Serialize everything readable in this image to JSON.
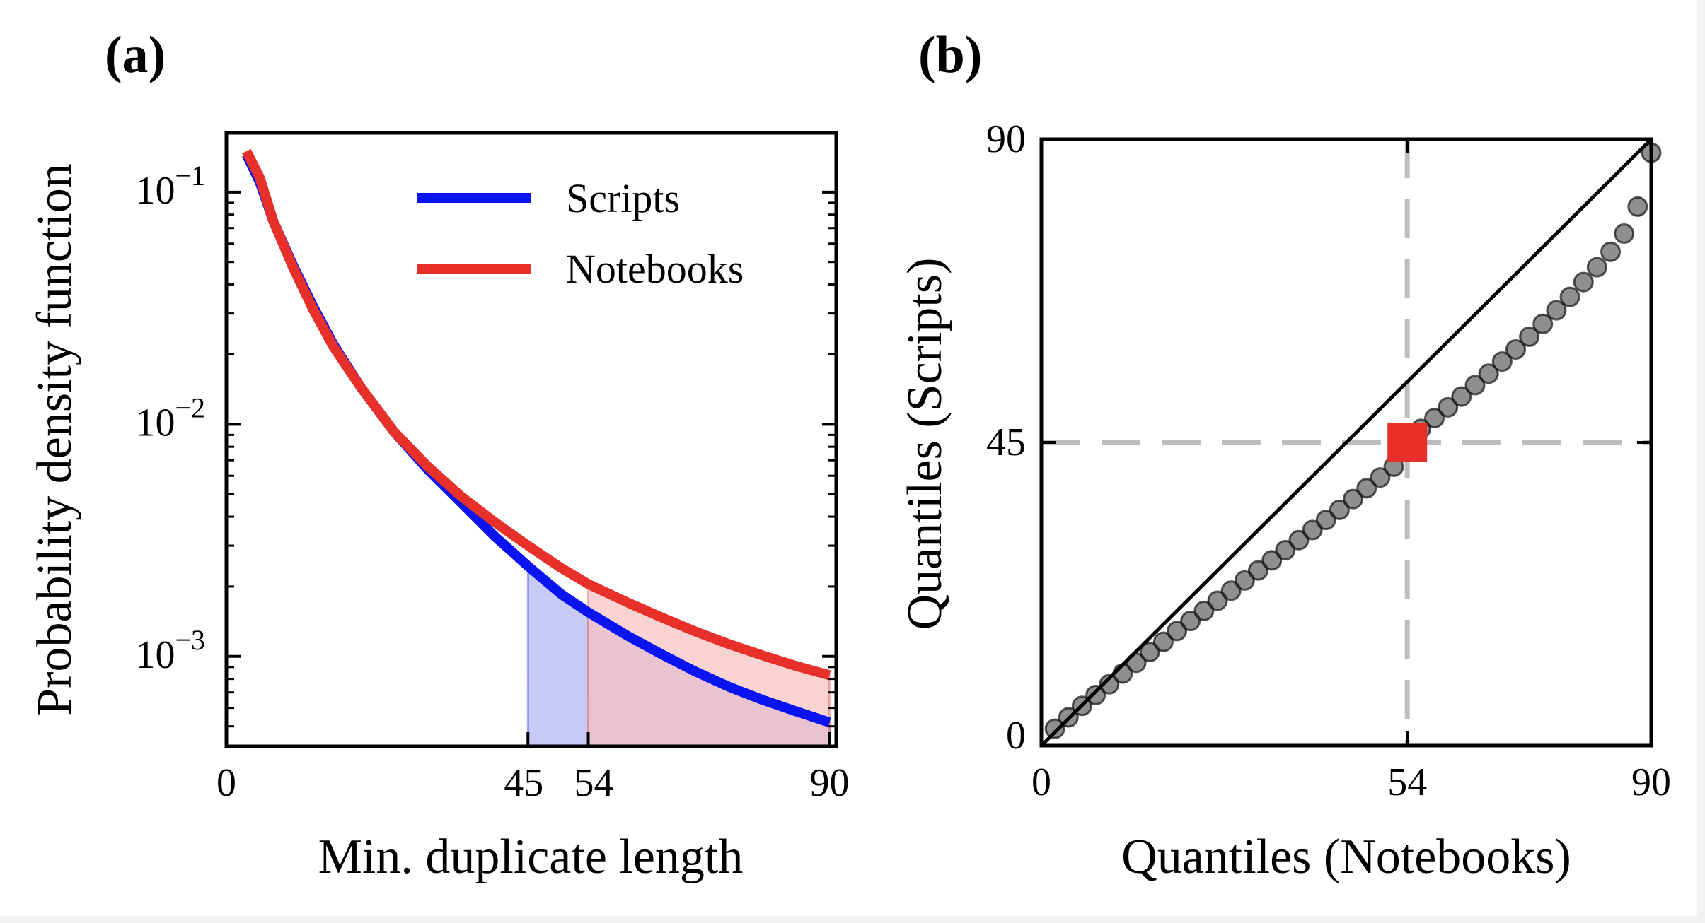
{
  "chart_data": [
    {
      "panel": "(a)",
      "type": "line",
      "xlabel": "Min. duplicate length",
      "ylabel": "Probability density function",
      "xlim": [
        0,
        91
      ],
      "ylim": [
        0.00041,
        0.18
      ],
      "yscale": "log",
      "xticks": [
        0,
        45,
        54,
        90
      ],
      "yticks": [
        0.001,
        0.01,
        0.1
      ],
      "ytick_base": "10",
      "ytick_exponents": [
        "−3",
        "−2",
        "−1"
      ],
      "legend_position": "top-right",
      "series": [
        {
          "name": "Scripts",
          "color": "#0a14f0",
          "fill_color": "#b4b4f5",
          "fill_from": 45,
          "x": [
            3,
            5,
            7,
            10,
            13,
            16,
            20,
            25,
            30,
            35,
            40,
            45,
            50,
            54,
            60,
            65,
            70,
            75,
            80,
            85,
            90
          ],
          "y": [
            0.145,
            0.11,
            0.075,
            0.048,
            0.032,
            0.022,
            0.0145,
            0.0093,
            0.0064,
            0.0046,
            0.0033,
            0.00245,
            0.00185,
            0.00155,
            0.00122,
            0.00102,
            0.00086,
            0.00074,
            0.00065,
            0.00058,
            0.00052
          ]
        },
        {
          "name": "Notebooks",
          "color": "#e8302a",
          "fill_color": "#f5c2c0",
          "fill_from": 54,
          "x": [
            3,
            5,
            7,
            10,
            13,
            16,
            20,
            25,
            30,
            35,
            40,
            45,
            50,
            54,
            60,
            65,
            70,
            75,
            80,
            85,
            90
          ],
          "y": [
            0.15,
            0.115,
            0.075,
            0.047,
            0.031,
            0.0215,
            0.0145,
            0.0093,
            0.0066,
            0.0049,
            0.0038,
            0.003,
            0.0024,
            0.00205,
            0.0017,
            0.00147,
            0.00128,
            0.00113,
            0.00101,
            0.00091,
            0.00083
          ]
        }
      ]
    },
    {
      "panel": "(b)",
      "type": "scatter",
      "xlabel": "Quantiles (Notebooks)",
      "ylabel": "Quantiles (Scripts)",
      "xlim": [
        0,
        90
      ],
      "ylim": [
        0,
        90
      ],
      "xticks": [
        0,
        54,
        90
      ],
      "yticks": [
        0,
        45,
        90
      ],
      "reference_line": "y = x",
      "highlight": {
        "x": 54,
        "y": 45,
        "color": "#e8302a"
      },
      "guide_lines": {
        "x": 54,
        "y": 45,
        "color": "#bdbdbd"
      },
      "series": [
        {
          "name": "",
          "color": "#333333",
          "x": [
            2,
            4,
            6,
            8,
            10,
            12,
            14,
            16,
            18,
            20,
            22,
            24,
            26,
            28,
            30,
            32,
            34,
            36,
            38,
            40,
            42,
            44,
            46,
            48,
            50,
            52,
            54,
            56,
            58,
            60,
            62,
            64,
            66,
            68,
            70,
            72,
            74,
            76,
            78,
            80,
            82,
            84,
            86,
            88,
            90
          ],
          "y": [
            2.5,
            4.2,
            5.9,
            7.5,
            9.1,
            10.7,
            12.3,
            13.9,
            15.4,
            17.0,
            18.5,
            20.0,
            21.5,
            23.0,
            24.5,
            26.0,
            27.5,
            29.0,
            30.5,
            32.0,
            33.5,
            35.0,
            36.6,
            38.2,
            39.8,
            41.4,
            45,
            47.0,
            48.6,
            50.2,
            51.8,
            53.5,
            55.2,
            57.0,
            58.8,
            60.7,
            62.6,
            64.6,
            66.6,
            68.8,
            71.0,
            73.3,
            76.0,
            80.0,
            88.0
          ]
        }
      ]
    }
  ]
}
